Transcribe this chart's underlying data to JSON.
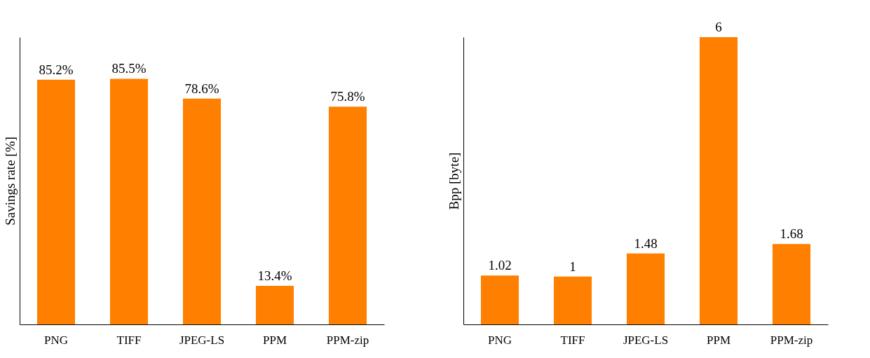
{
  "chart_data": [
    {
      "type": "bar",
      "categories": [
        "PNG",
        "TIFF",
        "JPEG-LS",
        "PPM",
        "PPM-zip"
      ],
      "values": [
        85.2,
        85.5,
        78.6,
        13.4,
        75.8
      ],
      "value_labels": [
        "85.2%",
        "85.5%",
        "78.6%",
        "13.4%",
        "75.8%"
      ],
      "color": "#ff8000",
      "ylabel": "Savings rate [%]",
      "ylim": [
        0,
        100
      ],
      "tick_labels": "x"
    },
    {
      "type": "bar",
      "categories": [
        "PNG",
        "TIFF",
        "JPEG-LS",
        "PPM",
        "PPM-zip"
      ],
      "values": [
        1.02,
        1,
        1.48,
        6,
        1.68
      ],
      "value_labels": [
        "1.02",
        "1",
        "1.48",
        "6",
        "1.68"
      ],
      "color": "#ff8000",
      "ylabel": "Bpp [byte]",
      "ylim": [
        0,
        6
      ],
      "tick_labels": "x"
    }
  ]
}
